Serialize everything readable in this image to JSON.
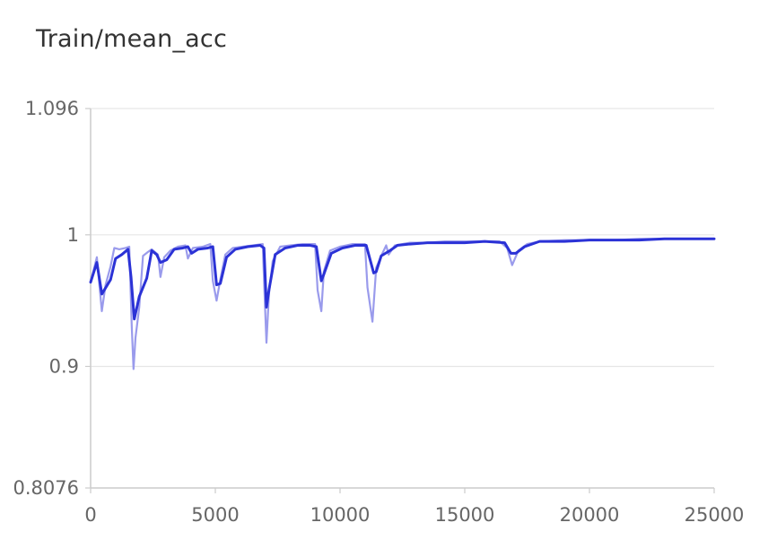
{
  "chart_data": {
    "type": "line",
    "title": "Train/mean_acc",
    "xlabel": "",
    "ylabel": "",
    "xlim": [
      0,
      25000
    ],
    "ylim": [
      0.8076,
      1.096
    ],
    "x_ticks": [
      0,
      5000,
      10000,
      15000,
      20000,
      25000
    ],
    "x_tick_labels": [
      "0",
      "5000",
      "10000",
      "15000",
      "20000",
      "25000"
    ],
    "y_ticks": [
      0.8076,
      0.9,
      1.0,
      1.096
    ],
    "y_tick_labels": [
      "0.8076",
      "0.9",
      "1",
      "1.096"
    ],
    "grid": true,
    "colors": {
      "raw": "#9a9bec",
      "smoothed": "#2b32d6",
      "grid": "#e6e6e6",
      "axis": "#cccccc"
    },
    "series": [
      {
        "role": "raw",
        "points": [
          [
            0,
            0.964
          ],
          [
            250,
            0.983
          ],
          [
            450,
            0.942
          ],
          [
            600,
            0.962
          ],
          [
            800,
            0.976
          ],
          [
            950,
            0.99
          ],
          [
            1150,
            0.989
          ],
          [
            1400,
            0.99
          ],
          [
            1550,
            0.991
          ],
          [
            1650,
            0.93
          ],
          [
            1720,
            0.898
          ],
          [
            1800,
            0.922
          ],
          [
            1950,
            0.945
          ],
          [
            2100,
            0.984
          ],
          [
            2300,
            0.987
          ],
          [
            2450,
            0.989
          ],
          [
            2700,
            0.985
          ],
          [
            2800,
            0.968
          ],
          [
            2950,
            0.983
          ],
          [
            3200,
            0.988
          ],
          [
            3500,
            0.991
          ],
          [
            3800,
            0.992
          ],
          [
            3900,
            0.982
          ],
          [
            4100,
            0.99
          ],
          [
            4500,
            0.991
          ],
          [
            4800,
            0.993
          ],
          [
            4900,
            0.965
          ],
          [
            5050,
            0.95
          ],
          [
            5200,
            0.966
          ],
          [
            5400,
            0.985
          ],
          [
            5700,
            0.99
          ],
          [
            6100,
            0.991
          ],
          [
            6500,
            0.992
          ],
          [
            6900,
            0.993
          ],
          [
            7000,
            0.942
          ],
          [
            7050,
            0.918
          ],
          [
            7150,
            0.955
          ],
          [
            7300,
            0.98
          ],
          [
            7600,
            0.991
          ],
          [
            8000,
            0.992
          ],
          [
            8500,
            0.993
          ],
          [
            9000,
            0.993
          ],
          [
            9100,
            0.958
          ],
          [
            9250,
            0.942
          ],
          [
            9350,
            0.972
          ],
          [
            9600,
            0.988
          ],
          [
            10000,
            0.991
          ],
          [
            10500,
            0.993
          ],
          [
            11000,
            0.993
          ],
          [
            11100,
            0.96
          ],
          [
            11300,
            0.934
          ],
          [
            11450,
            0.975
          ],
          [
            11700,
            0.986
          ],
          [
            11850,
            0.992
          ],
          [
            11950,
            0.985
          ],
          [
            12200,
            0.992
          ],
          [
            12800,
            0.994
          ],
          [
            13500,
            0.994
          ],
          [
            14200,
            0.995
          ],
          [
            15000,
            0.995
          ],
          [
            15700,
            0.995
          ],
          [
            16400,
            0.995
          ],
          [
            16700,
            0.99
          ],
          [
            16900,
            0.977
          ],
          [
            17150,
            0.988
          ],
          [
            17500,
            0.993
          ],
          [
            18000,
            0.995
          ],
          [
            19000,
            0.996
          ],
          [
            20000,
            0.996
          ],
          [
            21000,
            0.996
          ],
          [
            22000,
            0.997
          ],
          [
            23000,
            0.997
          ],
          [
            24000,
            0.997
          ],
          [
            25000,
            0.997
          ]
        ]
      },
      {
        "role": "smoothed",
        "points": [
          [
            0,
            0.964
          ],
          [
            250,
            0.979
          ],
          [
            450,
            0.955
          ],
          [
            800,
            0.966
          ],
          [
            1000,
            0.982
          ],
          [
            1250,
            0.985
          ],
          [
            1500,
            0.989
          ],
          [
            1620,
            0.968
          ],
          [
            1750,
            0.936
          ],
          [
            1950,
            0.953
          ],
          [
            2250,
            0.967
          ],
          [
            2450,
            0.988
          ],
          [
            2650,
            0.985
          ],
          [
            2800,
            0.979
          ],
          [
            3050,
            0.981
          ],
          [
            3350,
            0.989
          ],
          [
            3700,
            0.99
          ],
          [
            3900,
            0.991
          ],
          [
            4050,
            0.986
          ],
          [
            4300,
            0.989
          ],
          [
            4700,
            0.99
          ],
          [
            4900,
            0.991
          ],
          [
            5050,
            0.962
          ],
          [
            5200,
            0.963
          ],
          [
            5450,
            0.983
          ],
          [
            5800,
            0.989
          ],
          [
            6300,
            0.991
          ],
          [
            6800,
            0.992
          ],
          [
            6950,
            0.99
          ],
          [
            7050,
            0.945
          ],
          [
            7150,
            0.958
          ],
          [
            7400,
            0.985
          ],
          [
            7800,
            0.99
          ],
          [
            8300,
            0.992
          ],
          [
            8800,
            0.992
          ],
          [
            9050,
            0.991
          ],
          [
            9250,
            0.965
          ],
          [
            9350,
            0.97
          ],
          [
            9650,
            0.986
          ],
          [
            10100,
            0.99
          ],
          [
            10600,
            0.992
          ],
          [
            11050,
            0.992
          ],
          [
            11350,
            0.971
          ],
          [
            11450,
            0.972
          ],
          [
            11650,
            0.984
          ],
          [
            12000,
            0.988
          ],
          [
            12300,
            0.992
          ],
          [
            12800,
            0.993
          ],
          [
            13500,
            0.994
          ],
          [
            14200,
            0.994
          ],
          [
            15000,
            0.994
          ],
          [
            15800,
            0.995
          ],
          [
            16600,
            0.994
          ],
          [
            16850,
            0.986
          ],
          [
            17050,
            0.986
          ],
          [
            17400,
            0.991
          ],
          [
            18000,
            0.995
          ],
          [
            19000,
            0.995
          ],
          [
            20000,
            0.996
          ],
          [
            21000,
            0.996
          ],
          [
            22000,
            0.996
          ],
          [
            23000,
            0.997
          ],
          [
            24000,
            0.997
          ],
          [
            25000,
            0.997
          ]
        ]
      }
    ]
  }
}
